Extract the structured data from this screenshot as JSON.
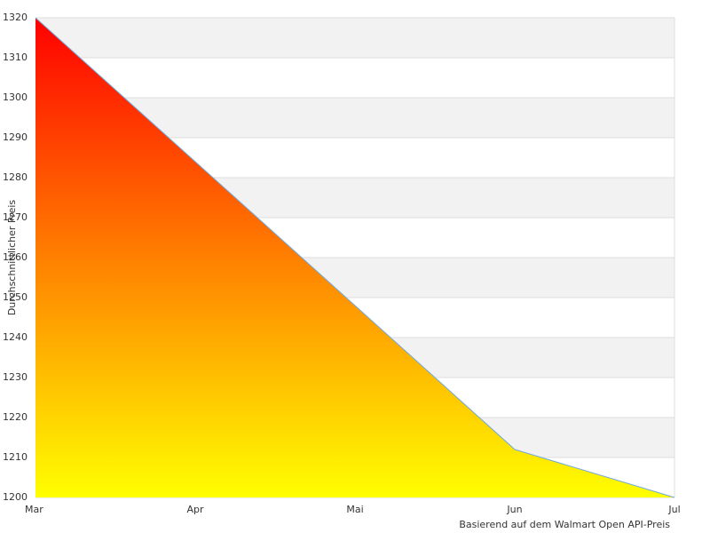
{
  "chart_data": {
    "type": "area",
    "y_label": "Durchschnittlicher Preis",
    "note": "Basierend auf dem Walmart Open API-Preis",
    "categories": [
      "Mar",
      "Apr",
      "Mai",
      "Jun",
      "Jul"
    ],
    "values": [
      1320,
      1284,
      1248,
      1212,
      1200
    ],
    "ylim": [
      1200,
      1320
    ],
    "yticks": [
      1200,
      1210,
      1220,
      1230,
      1240,
      1250,
      1260,
      1270,
      1280,
      1290,
      1300,
      1310,
      1320
    ],
    "grid": true,
    "band_color": "#f2f2f2",
    "line_color": "#6fa8dc",
    "gradient": [
      "#ff0000",
      "#ffff00"
    ]
  }
}
